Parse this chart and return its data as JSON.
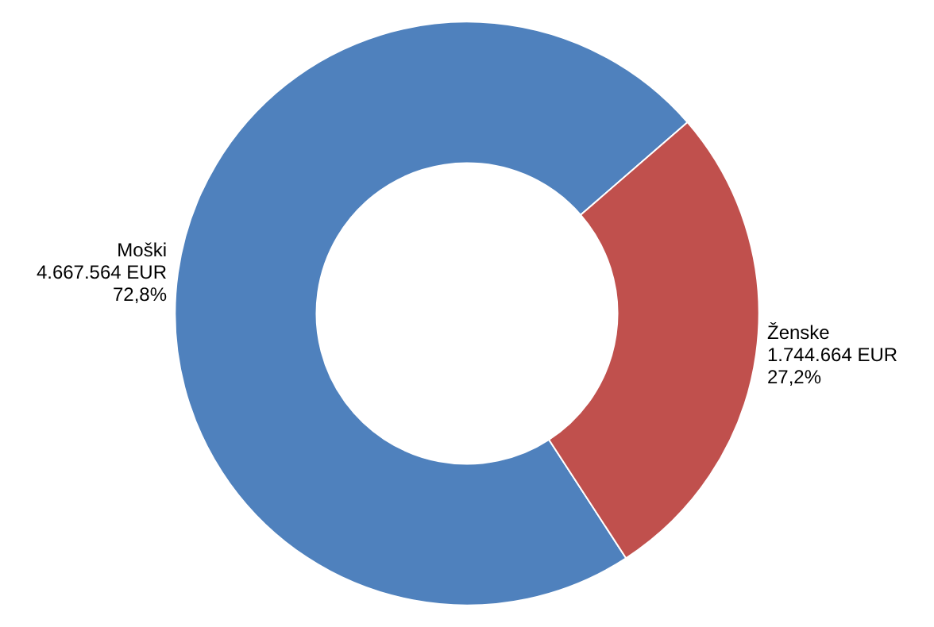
{
  "chart_data": {
    "type": "donut",
    "categories": [
      "Moški",
      "Ženske"
    ],
    "values": [
      4667564,
      1744664
    ],
    "colors": [
      "#4f81bd",
      "#c0504d"
    ],
    "value_labels": [
      "4.667.564 EUR\n72,8%",
      "1.744.664 EUR\n27,2%"
    ],
    "legend": false
  }
}
